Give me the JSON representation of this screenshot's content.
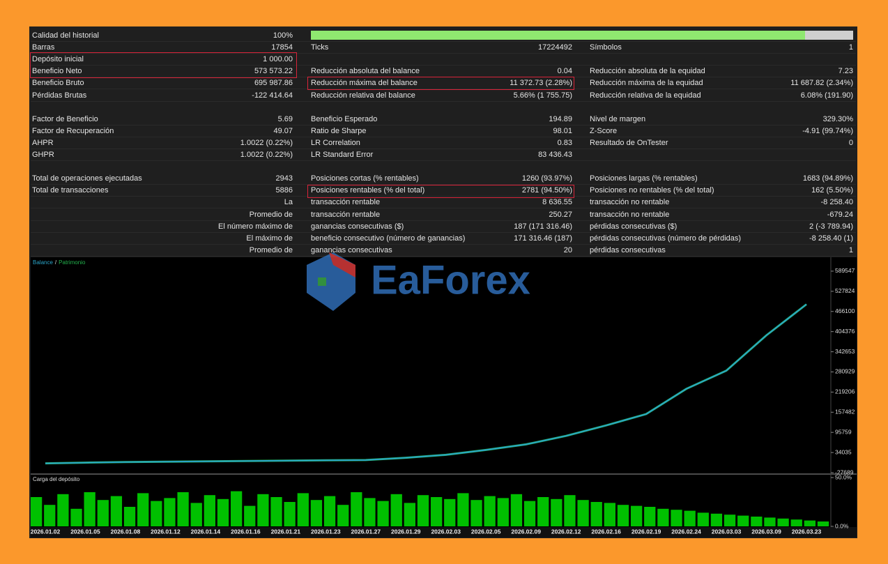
{
  "report": {
    "sections": [
      [
        {
          "left": {
            "label": "Calidad del historial",
            "value": "100%"
          }
        },
        {
          "left": {
            "label": "Barras",
            "value": "17854"
          },
          "middle": {
            "label": "Ticks",
            "value": "17224492"
          },
          "right": {
            "label": "Símbolos",
            "value": "1"
          }
        },
        {
          "left": {
            "label": "Depósito inicial",
            "value": "1 000.00"
          }
        },
        {
          "left": {
            "label": "Beneficio Neto",
            "value": "573 573.22"
          },
          "middle": {
            "label": "Reducción absoluta del balance",
            "value": "0.04"
          },
          "right": {
            "label": "Reducción absoluta de la equidad",
            "value": "7.23"
          }
        },
        {
          "left": {
            "label": "Beneficio Bruto",
            "value": "695 987.86"
          },
          "middle": {
            "label": "Reducción máxima del balance",
            "value": "11 372.73 (2.28%)"
          },
          "right": {
            "label": "Reducción máxima de la equidad",
            "value": "11 687.82 (2.34%)"
          }
        },
        {
          "left": {
            "label": "Pérdidas Brutas",
            "value": "-122 414.64"
          },
          "middle": {
            "label": "Reducción relativa del balance",
            "value": "5.66% (1 755.75)"
          },
          "right": {
            "label": "Reducción relativa de la equidad",
            "value": "6.08% (191.90)"
          }
        }
      ],
      [
        {
          "left": {
            "label": "Factor de Beneficio",
            "value": "5.69"
          },
          "middle": {
            "label": "Beneficio Esperado",
            "value": "194.89"
          },
          "right": {
            "label": "Nivel de margen",
            "value": "329.30%"
          }
        },
        {
          "left": {
            "label": "Factor de Recuperación",
            "value": "49.07"
          },
          "middle": {
            "label": "Ratio de Sharpe",
            "value": "98.01"
          },
          "right": {
            "label": "Z-Score",
            "value": "-4.91 (99.74%)"
          }
        },
        {
          "left": {
            "label": "AHPR",
            "value": "1.0022 (0.22%)"
          },
          "middle": {
            "label": "LR Correlation",
            "value": "0.83"
          },
          "right": {
            "label": "Resultado de OnTester",
            "value": "0"
          }
        },
        {
          "left": {
            "label": "GHPR",
            "value": "1.0022 (0.22%)"
          },
          "middle": {
            "label": "LR Standard Error",
            "value": "83 436.43"
          }
        }
      ],
      [
        {
          "left": {
            "label": "Total de operaciones ejecutadas",
            "value": "2943"
          },
          "middle": {
            "label": "Posiciones cortas (% rentables)",
            "value": "1260 (93.97%)"
          },
          "right": {
            "label": "Posiciones largas (% rentables)",
            "value": "1683 (94.89%)"
          }
        },
        {
          "left": {
            "label": "Total de transacciones",
            "value": "5886"
          },
          "middle": {
            "label": "Posiciones rentables (% del total)",
            "value": "2781 (94.50%)"
          },
          "right": {
            "label": "Posiciones no rentables (% del total)",
            "value": "162 (5.50%)"
          }
        },
        {
          "left": {
            "value": "La"
          },
          "middle": {
            "label": "transacción rentable",
            "value": "8 636.55"
          },
          "right": {
            "label": "transacción no rentable",
            "value": "-8 258.40"
          }
        },
        {
          "left": {
            "value": "Promedio de"
          },
          "middle": {
            "label": "transacción rentable",
            "value": "250.27"
          },
          "right": {
            "label": "transacción no rentable",
            "value": "-679.24"
          }
        },
        {
          "left": {
            "value": "El número máximo de"
          },
          "middle": {
            "label": "ganancias consecutivas ($)",
            "value": "187 (171 316.46)"
          },
          "right": {
            "label": "pérdidas consecutivas ($)",
            "value": "2 (-3 789.94)"
          }
        },
        {
          "left": {
            "value": "El máximo de"
          },
          "middle": {
            "label": "beneficio consecutivo (número de ganancias)",
            "value": "171 316.46 (187)"
          },
          "right": {
            "label": "pérdidas consecutivas (número de pérdidas)",
            "value": "-8 258.40 (1)"
          }
        },
        {
          "left": {
            "value": "Promedio de"
          },
          "middle": {
            "label": "ganancias consecutivas",
            "value": "20"
          },
          "right": {
            "label": "pérdidas consecutivas",
            "value": "1"
          }
        }
      ]
    ]
  },
  "watermark": "EaForex",
  "chart_data": [
    {
      "type": "line",
      "categories": [
        "2026.01.02",
        "2026.01.05",
        "2026.01.08",
        "2026.01.12",
        "2026.01.14",
        "2026.01.16",
        "2026.01.21",
        "2026.01.23",
        "2026.01.27",
        "2026.01.29",
        "2026.02.03",
        "2026.02.05",
        "2026.02.09",
        "2026.02.12",
        "2026.02.16",
        "2026.02.19",
        "2026.02.24",
        "2026.03.03",
        "2026.03.09",
        "2026.03.23"
      ],
      "series": [
        {
          "name": "Patrimonio",
          "color": "#22b14c",
          "values": [
            1000,
            3000,
            5000,
            6000,
            7000,
            8000,
            9000,
            10000,
            11000,
            18000,
            27000,
            42000,
            59000,
            85000,
            117000,
            152000,
            229000,
            285000,
            393000,
            488000
          ]
        },
        {
          "name": "Balance",
          "color": "#2aa4c8",
          "values": [
            1000,
            3000,
            5000,
            6000,
            7000,
            8000,
            9000,
            10000,
            11000,
            18000,
            27000,
            42000,
            59000,
            85000,
            117000,
            152000,
            229000,
            285000,
            393000,
            488000
          ]
        }
      ],
      "legend_separator": "/",
      "ylim": [
        -27689,
        630000
      ],
      "yticks": [
        589547,
        527824,
        466100,
        404376,
        342653,
        280929,
        219206,
        157482,
        95759,
        34035,
        -27689
      ]
    },
    {
      "type": "bar",
      "title": "Carga del depósito",
      "color": "#00c000",
      "values": [
        30,
        22,
        33,
        18,
        35,
        27,
        31,
        20,
        34,
        26,
        29,
        35,
        24,
        32,
        28,
        36,
        21,
        33,
        30,
        25,
        34,
        27,
        31,
        22,
        35,
        29,
        26,
        33,
        24,
        32,
        30,
        28,
        34,
        27,
        31,
        29,
        33,
        26,
        30,
        28,
        32,
        27,
        25,
        24,
        22,
        21,
        20,
        18,
        17,
        16,
        14,
        13,
        12,
        11,
        10,
        9,
        8,
        7,
        6,
        5
      ],
      "ylim": [
        0,
        50
      ],
      "yticks": [
        {
          "value": 50,
          "label": "50.0%"
        },
        {
          "value": 0,
          "label": "0.0%"
        }
      ]
    }
  ]
}
